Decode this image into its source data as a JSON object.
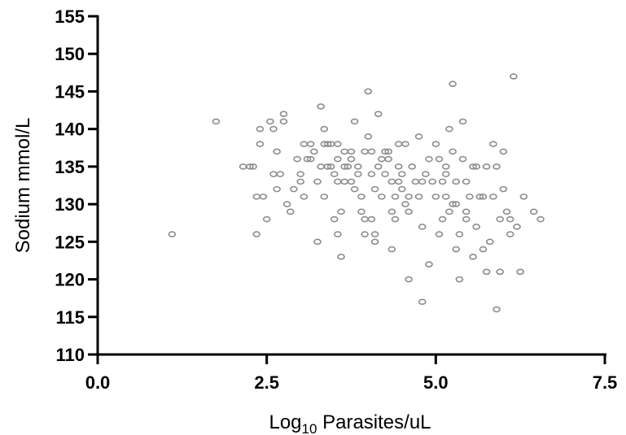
{
  "chart_data": {
    "type": "scatter",
    "xlabel": {
      "prefix": "Log",
      "subscript": "10",
      "suffix": " Parasites/uL"
    },
    "ylabel": "Sodium mmol/L",
    "xlim": [
      0,
      7.5
    ],
    "ylim": [
      110,
      155
    ],
    "x_ticks": [
      "0.0",
      "2.5",
      "5.0",
      "7.5"
    ],
    "y_ticks": [
      "110",
      "115",
      "120",
      "125",
      "130",
      "135",
      "140",
      "145",
      "150",
      "155"
    ],
    "grid": false,
    "marker": "open-ellipse",
    "marker_color": "#8c8c8c",
    "series": [
      {
        "points": [
          [
            1.1,
            126
          ],
          [
            1.75,
            141
          ],
          [
            2.15,
            135
          ],
          [
            2.25,
            135
          ],
          [
            2.3,
            135
          ],
          [
            2.35,
            126
          ],
          [
            2.35,
            131
          ],
          [
            2.4,
            140
          ],
          [
            2.4,
            138
          ],
          [
            2.45,
            131
          ],
          [
            2.5,
            128
          ],
          [
            2.55,
            141
          ],
          [
            2.6,
            134
          ],
          [
            2.6,
            140
          ],
          [
            2.65,
            137
          ],
          [
            2.65,
            132
          ],
          [
            2.7,
            134
          ],
          [
            2.75,
            141
          ],
          [
            2.75,
            142
          ],
          [
            2.8,
            130
          ],
          [
            2.85,
            129
          ],
          [
            2.95,
            136
          ],
          [
            3.0,
            134
          ],
          [
            3.05,
            138
          ],
          [
            3.05,
            131
          ],
          [
            3.1,
            136
          ],
          [
            3.15,
            136
          ],
          [
            3.2,
            137
          ],
          [
            3.25,
            133
          ],
          [
            3.25,
            125
          ],
          [
            3.3,
            143
          ],
          [
            3.3,
            135
          ],
          [
            3.35,
            140
          ],
          [
            3.35,
            138
          ],
          [
            3.4,
            138
          ],
          [
            3.4,
            135
          ],
          [
            3.45,
            138
          ],
          [
            3.5,
            134
          ],
          [
            3.5,
            128
          ],
          [
            3.55,
            138
          ],
          [
            3.55,
            133
          ],
          [
            3.55,
            126
          ],
          [
            3.6,
            123
          ],
          [
            3.6,
            129
          ],
          [
            3.65,
            135
          ],
          [
            3.65,
            133
          ],
          [
            3.7,
            135
          ],
          [
            3.75,
            137
          ],
          [
            3.75,
            136
          ],
          [
            3.8,
            141
          ],
          [
            3.8,
            132
          ],
          [
            3.85,
            134
          ],
          [
            3.85,
            135
          ],
          [
            3.9,
            131
          ],
          [
            3.9,
            129
          ],
          [
            3.95,
            137
          ],
          [
            3.95,
            128
          ],
          [
            4.0,
            145
          ],
          [
            4.0,
            139
          ],
          [
            4.05,
            137
          ],
          [
            4.05,
            134
          ],
          [
            4.1,
            132
          ],
          [
            4.1,
            125
          ],
          [
            4.1,
            126
          ],
          [
            4.15,
            142
          ],
          [
            4.15,
            135
          ],
          [
            4.2,
            131
          ],
          [
            4.2,
            136
          ],
          [
            4.25,
            134
          ],
          [
            4.3,
            137
          ],
          [
            4.35,
            133
          ],
          [
            4.35,
            129
          ],
          [
            4.35,
            124
          ],
          [
            4.4,
            128
          ],
          [
            4.4,
            131
          ],
          [
            4.45,
            135
          ],
          [
            4.45,
            138
          ],
          [
            4.5,
            134
          ],
          [
            4.5,
            132
          ],
          [
            4.55,
            138
          ],
          [
            4.6,
            129
          ],
          [
            4.6,
            120
          ],
          [
            4.65,
            135
          ],
          [
            4.7,
            133
          ],
          [
            4.75,
            139
          ],
          [
            4.75,
            131
          ],
          [
            4.8,
            117
          ],
          [
            4.8,
            127
          ],
          [
            4.85,
            134
          ],
          [
            4.9,
            136
          ],
          [
            4.9,
            122
          ],
          [
            5.0,
            138
          ],
          [
            5.0,
            131
          ],
          [
            5.05,
            136
          ],
          [
            5.05,
            126
          ],
          [
            5.1,
            133
          ],
          [
            5.1,
            128
          ],
          [
            5.15,
            134
          ],
          [
            5.15,
            131
          ],
          [
            5.2,
            140
          ],
          [
            5.2,
            129
          ],
          [
            5.25,
            146
          ],
          [
            5.25,
            137
          ],
          [
            5.3,
            133
          ],
          [
            5.3,
            130
          ],
          [
            5.3,
            124
          ],
          [
            5.35,
            126
          ],
          [
            5.35,
            120
          ],
          [
            5.4,
            136
          ],
          [
            5.4,
            141
          ],
          [
            5.45,
            129
          ],
          [
            5.45,
            133
          ],
          [
            5.5,
            131
          ],
          [
            5.55,
            123
          ],
          [
            5.55,
            135
          ],
          [
            5.6,
            127
          ],
          [
            5.65,
            131
          ],
          [
            5.7,
            124
          ],
          [
            5.75,
            135
          ],
          [
            5.75,
            121
          ],
          [
            5.8,
            125
          ],
          [
            5.85,
            138
          ],
          [
            5.85,
            131
          ],
          [
            5.9,
            135
          ],
          [
            5.9,
            116
          ],
          [
            5.95,
            128
          ],
          [
            6.0,
            137
          ],
          [
            6.0,
            132
          ],
          [
            6.05,
            129
          ],
          [
            6.1,
            126
          ],
          [
            6.15,
            147
          ],
          [
            6.1,
            128
          ],
          [
            6.2,
            127
          ],
          [
            6.25,
            121
          ],
          [
            6.3,
            131
          ],
          [
            6.45,
            129
          ],
          [
            6.55,
            128
          ],
          [
            3.0,
            133
          ],
          [
            3.45,
            135
          ],
          [
            3.75,
            133
          ],
          [
            4.25,
            137
          ],
          [
            4.55,
            130
          ],
          [
            4.95,
            133
          ],
          [
            5.15,
            135
          ],
          [
            5.45,
            128
          ],
          [
            5.6,
            135
          ],
          [
            5.95,
            121
          ],
          [
            3.65,
            137
          ],
          [
            4.05,
            128
          ],
          [
            4.45,
            133
          ],
          [
            4.8,
            133
          ],
          [
            5.25,
            130
          ],
          [
            5.7,
            131
          ],
          [
            3.95,
            126
          ],
          [
            4.6,
            131
          ],
          [
            4.3,
            136
          ],
          [
            3.35,
            131
          ],
          [
            2.9,
            132
          ],
          [
            3.15,
            138
          ],
          [
            3.55,
            136
          ]
        ]
      }
    ]
  }
}
